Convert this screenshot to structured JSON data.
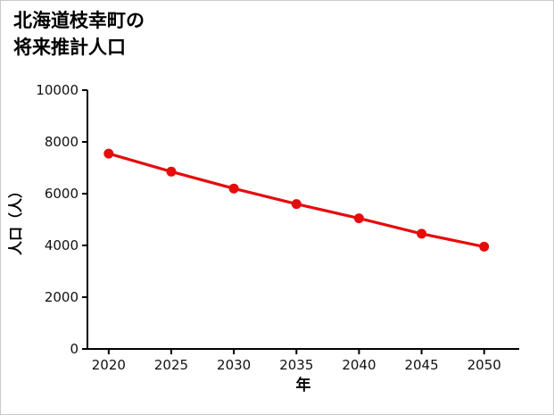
{
  "title": {
    "line1": "北海道枝幸町の",
    "line2": "将来推計人口"
  },
  "chart_data": {
    "type": "line",
    "title": "北海道枝幸町の将来推計人口",
    "xlabel": "年",
    "ylabel": "人口（人）",
    "x": [
      2020,
      2025,
      2030,
      2035,
      2040,
      2045,
      2050
    ],
    "series": [
      {
        "name": "将来推計人口",
        "values": [
          7550,
          6850,
          6200,
          5600,
          5050,
          4450,
          3950
        ]
      }
    ],
    "ylim": [
      0,
      10000
    ],
    "yticks": [
      0,
      2000,
      4000,
      6000,
      8000,
      10000
    ],
    "xticks": [
      2020,
      2025,
      2030,
      2035,
      2040,
      2045,
      2050
    ],
    "grid": false,
    "legend": "none",
    "marker": "circle"
  },
  "colors": {
    "line": "#e60c0c",
    "axis": "#000000",
    "text": "#111111",
    "background": "#ffffff"
  }
}
